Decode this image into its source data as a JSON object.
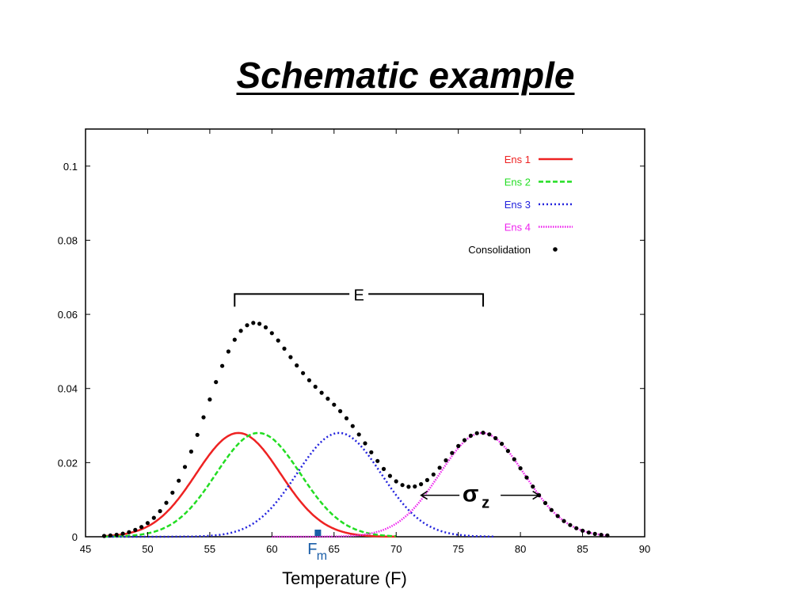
{
  "slide": {
    "title": "Schematic example"
  },
  "chart_data": {
    "type": "line",
    "xlabel": "Temperature (F)",
    "ylabel": "",
    "xlim": [
      45,
      90
    ],
    "ylim": [
      0,
      0.11
    ],
    "x_ticks": [
      "45",
      "50",
      "55",
      "60",
      "65",
      "70",
      "75",
      "80",
      "85",
      "90"
    ],
    "y_ticks": [
      "0",
      "0.02",
      "0.04",
      "0.06",
      "0.08",
      "0.1"
    ],
    "grid": false,
    "legend_position": "top-right",
    "series": [
      {
        "name": "Ens 1",
        "color": "#ee2222",
        "style": "solid",
        "mean": 57.3,
        "sd": 3.4,
        "peak": 0.028,
        "x_range": [
          46.5,
          70
        ]
      },
      {
        "name": "Ens 2",
        "color": "#22dd22",
        "style": "dashed",
        "mean": 58.9,
        "sd": 3.4,
        "peak": 0.028,
        "x_range": [
          46.5,
          70
        ]
      },
      {
        "name": "Ens 3",
        "color": "#2222dd",
        "style": "dotted",
        "mean": 65.4,
        "sd": 3.4,
        "peak": 0.028,
        "x_range": [
          46.5,
          78
        ]
      },
      {
        "name": "Ens 4",
        "color": "#ee22ee",
        "style": "dotted-fine",
        "mean": 76.9,
        "sd": 3.4,
        "peak": 0.028,
        "x_range": [
          60,
          87
        ]
      },
      {
        "name": "Consolidation",
        "color": "#000000",
        "style": "points",
        "x_range": [
          46.5,
          87
        ]
      }
    ],
    "annotations": {
      "spread_label": "E",
      "spread_range": [
        57,
        77
      ],
      "spread_y": 0.0655,
      "sigma_label": "σ",
      "sigma_sub": "z",
      "sigma_range": [
        72,
        81.5
      ],
      "sigma_y": 0.0112,
      "marker_label": "F",
      "marker_sub": "m",
      "marker_x": 63.7,
      "marker_color": "#1a5ea8"
    }
  }
}
